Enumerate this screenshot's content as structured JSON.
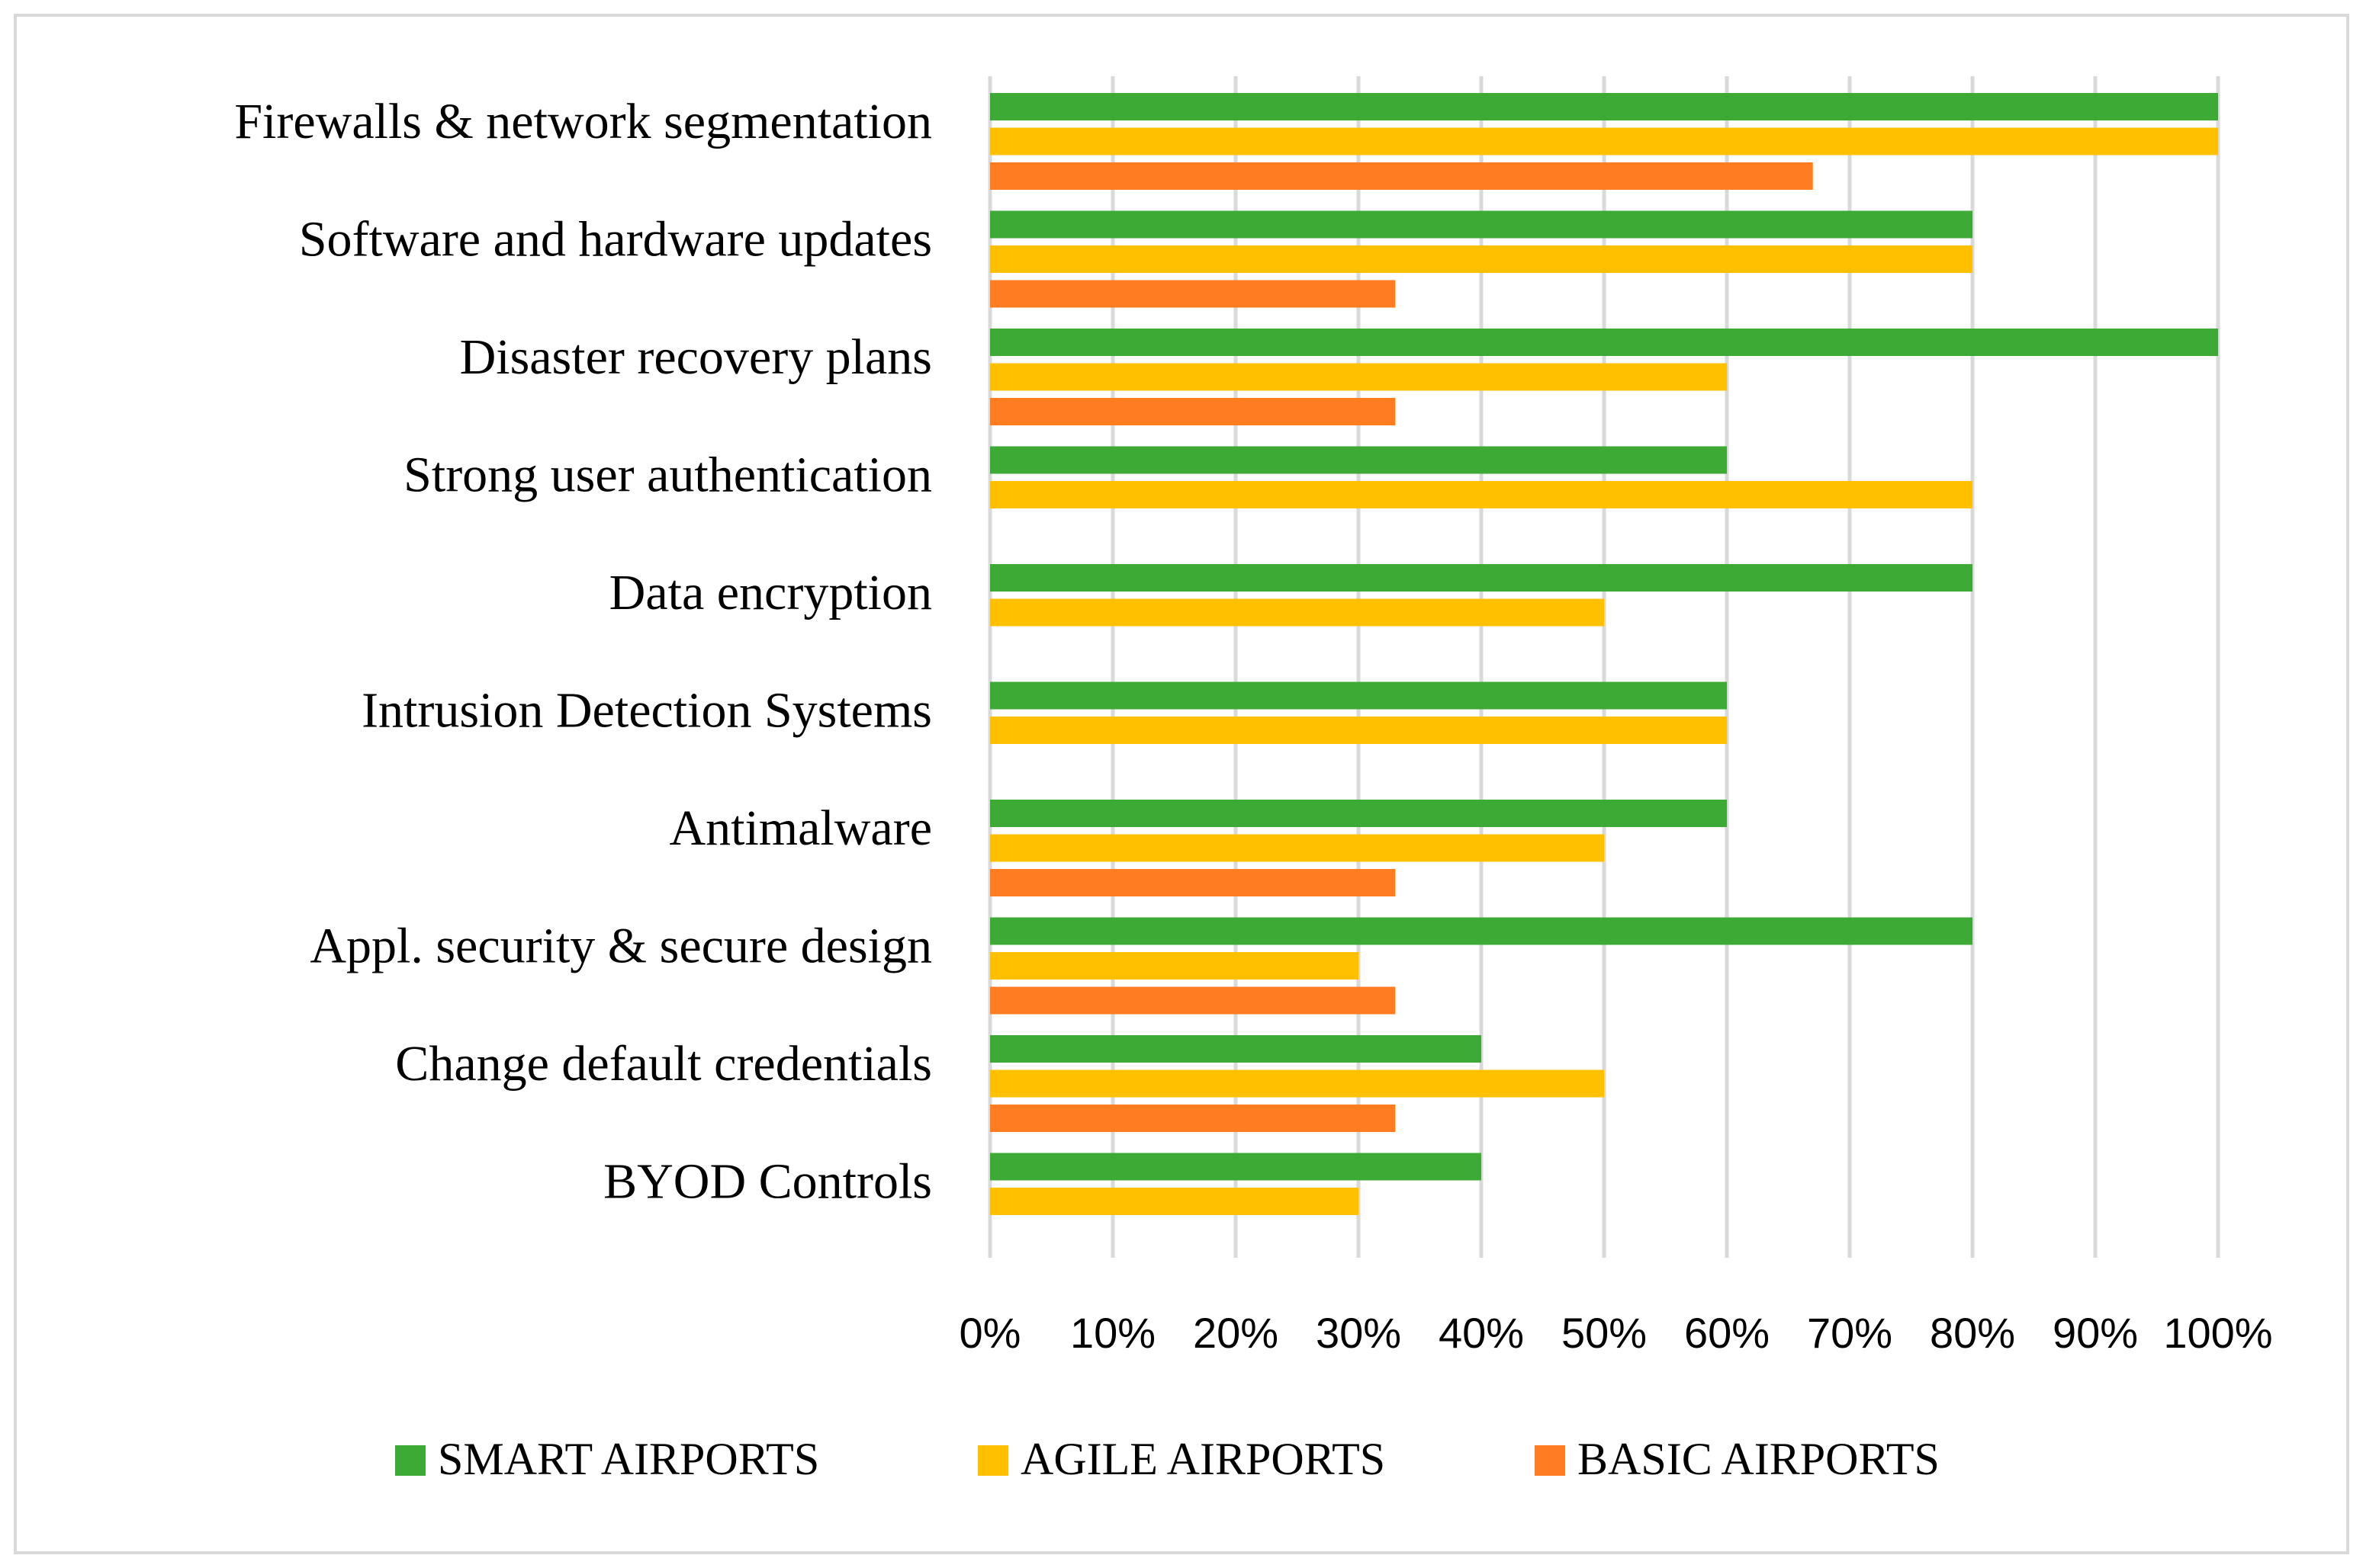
{
  "chart_data": {
    "type": "bar",
    "orientation": "horizontal",
    "title": "",
    "xlabel": "",
    "ylabel": "",
    "xlim": [
      0,
      100
    ],
    "grid": true,
    "legend_position": "bottom",
    "categories": [
      "Firewalls & network segmentation",
      "Software and hardware updates",
      "Disaster recovery plans",
      "Strong user authentication",
      "Data encryption",
      "Intrusion Detection Systems",
      "Antimalware",
      "Appl. security & secure design",
      "Change default credentials",
      "BYOD Controls"
    ],
    "ticks": [
      "0%",
      "10%",
      "20%",
      "30%",
      "40%",
      "50%",
      "60%",
      "70%",
      "80%",
      "90%",
      "100%"
    ],
    "series": [
      {
        "name": "SMART AIRPORTS",
        "color": "#3daa35",
        "values": [
          100,
          80,
          100,
          60,
          80,
          60,
          60,
          80,
          40,
          40
        ]
      },
      {
        "name": "AGILE AIRPORTS",
        "color": "#ffc000",
        "values": [
          100,
          80,
          60,
          80,
          50,
          60,
          50,
          30,
          50,
          30
        ]
      },
      {
        "name": "BASIC AIRPORTS",
        "color": "#ff7c20",
        "values": [
          67,
          33,
          33,
          0,
          0,
          0,
          33,
          33,
          33,
          0
        ]
      }
    ]
  }
}
